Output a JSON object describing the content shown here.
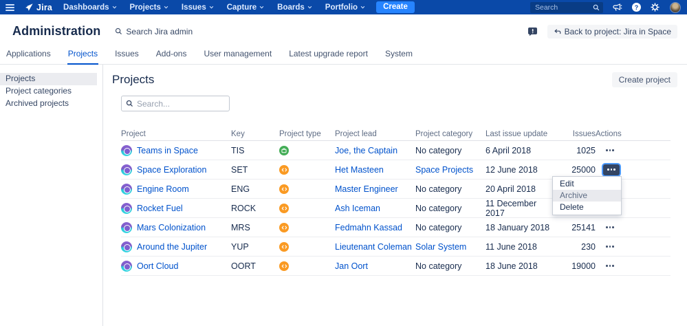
{
  "colors": {
    "navbar": "#0A49A8",
    "create_button": "#2684FF",
    "link": "#0052CC",
    "active_tab": "#0052CC",
    "more_button_active": "#344563",
    "focus_ring": "#4C9AFF",
    "business_type": "#44AD57",
    "software_type": "#FA9A23"
  },
  "icons": [
    "hamburger-icon",
    "jira-logo",
    "chevron-down-icon",
    "search-icon",
    "megaphone-icon",
    "help-icon",
    "gear-icon",
    "avatar",
    "feedback-bubble-icon",
    "back-arrow-icon",
    "project-avatar",
    "business-type-icon",
    "software-type-icon",
    "more-dots-icon"
  ],
  "topnav": {
    "logo_text": "Jira",
    "menu": [
      "Dashboards",
      "Projects",
      "Issues",
      "Capture",
      "Boards",
      "Portfolio"
    ],
    "create_label": "Create",
    "search_placeholder": "Search"
  },
  "header": {
    "title": "Administration",
    "admin_search_label": "Search Jira admin",
    "back_button_label": "Back to project: Jira in Space"
  },
  "tabs": [
    {
      "label": "Applications",
      "active": false
    },
    {
      "label": "Projects",
      "active": true
    },
    {
      "label": "Issues",
      "active": false
    },
    {
      "label": "Add-ons",
      "active": false
    },
    {
      "label": "User management",
      "active": false
    },
    {
      "label": "Latest upgrade report",
      "active": false
    },
    {
      "label": "System",
      "active": false
    }
  ],
  "sidebar": {
    "items": [
      {
        "label": "Projects",
        "active": true
      },
      {
        "label": "Project categories",
        "active": false
      },
      {
        "label": "Archived projects",
        "active": false
      }
    ]
  },
  "main": {
    "title": "Projects",
    "create_button_label": "Create project",
    "search_placeholder": "Search..."
  },
  "table": {
    "columns": [
      "Project",
      "Key",
      "Project type",
      "Project lead",
      "Project category",
      "Last issue update",
      "Issues",
      "Actions"
    ],
    "rows": [
      {
        "name": "Teams in Space",
        "key": "TIS",
        "type": "business",
        "lead": "Joe, the Captain",
        "category": "No category",
        "category_is_link": false,
        "updated": "6 April 2018",
        "issues": "1025",
        "menu_open": false
      },
      {
        "name": "Space Exploration",
        "key": "SET",
        "type": "software",
        "lead": "Het Masteen",
        "category": "Space Projects",
        "category_is_link": true,
        "updated": "12 June 2018",
        "issues": "25000",
        "menu_open": true
      },
      {
        "name": "Engine Room",
        "key": "ENG",
        "type": "software",
        "lead": "Master Engineer",
        "category": "No category",
        "category_is_link": false,
        "updated": "20 April 2018",
        "issues": "",
        "menu_open": false
      },
      {
        "name": "Rocket Fuel",
        "key": "ROCK",
        "type": "software",
        "lead": "Ash Iceman",
        "category": "No category",
        "category_is_link": false,
        "updated": "11 December 2017",
        "issues": "",
        "menu_open": false
      },
      {
        "name": "Mars Colonization",
        "key": "MRS",
        "type": "software",
        "lead": "Fedmahn Kassad",
        "category": "No category",
        "category_is_link": false,
        "updated": "18 January 2018",
        "issues": "25141",
        "menu_open": false
      },
      {
        "name": "Around the Jupiter",
        "key": "YUP",
        "type": "software",
        "lead": "Lieutenant Coleman",
        "category": "Solar System",
        "category_is_link": true,
        "updated": "11 June 2018",
        "issues": "230",
        "menu_open": false
      },
      {
        "name": "Oort Cloud",
        "key": "OORT",
        "type": "software",
        "lead": "Jan Oort",
        "category": "No category",
        "category_is_link": false,
        "updated": "18 June 2018",
        "issues": "19000",
        "menu_open": false
      }
    ]
  },
  "context_menu": {
    "items": [
      "Edit",
      "Archive",
      "Delete"
    ],
    "highlighted": "Archive"
  }
}
